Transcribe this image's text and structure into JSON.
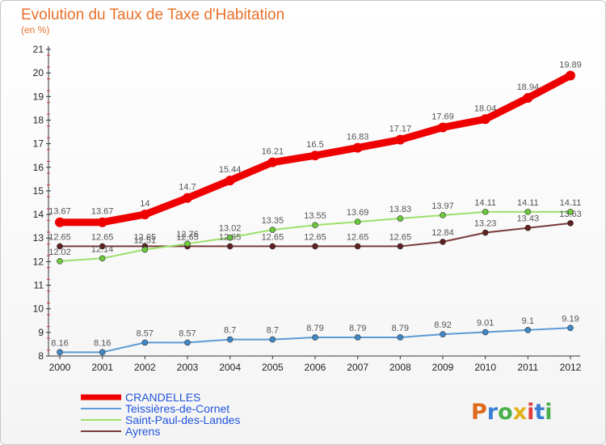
{
  "chart_data": {
    "type": "line",
    "title": "Evolution du Taux de Taxe d'Habitation",
    "subtitle": "(en %)",
    "xlabel": "",
    "ylabel": "",
    "x": [
      "2000",
      "2001",
      "2002",
      "2003",
      "2004",
      "2005",
      "2006",
      "2007",
      "2008",
      "2009",
      "2010",
      "2011",
      "2012"
    ],
    "ylim": [
      8,
      21
    ],
    "yticks": [
      8,
      9,
      10,
      11,
      12,
      13,
      14,
      15,
      16,
      17,
      18,
      19,
      20,
      21
    ],
    "grid": false,
    "legend_position": "bottom-left",
    "series": [
      {
        "name": "CRANDELLES",
        "color": "#ee0000",
        "values": [
          13.67,
          13.67,
          14,
          14.7,
          15.44,
          16.21,
          16.5,
          16.83,
          17.17,
          17.69,
          18.04,
          18.94,
          19.89
        ],
        "labels": [
          "13.67",
          "13.67",
          "14",
          "14.7",
          "15.44",
          "16.21",
          "16.5",
          "16.83",
          "17.17",
          "17.69",
          "18.04",
          "18.94",
          "19.89"
        ]
      },
      {
        "name": "Teissières-de-Cornet",
        "color": "#5b9bd5",
        "marker_color": "#3f88c8",
        "values": [
          8.16,
          8.16,
          8.57,
          8.57,
          8.7,
          8.7,
          8.79,
          8.79,
          8.79,
          8.92,
          9.01,
          9.1,
          9.19
        ],
        "labels": [
          "8.16",
          "8.16",
          "8.57",
          "8.57",
          "8.7",
          "8.7",
          "8.79",
          "8.79",
          "8.79",
          "8.92",
          "9.01",
          "9.1",
          "9.19"
        ]
      },
      {
        "name": "Saint-Paul-des-Landes",
        "color": "#9ce06b",
        "marker_color": "#6cc93c",
        "values": [
          12.02,
          12.14,
          12.51,
          12.76,
          13.02,
          13.35,
          13.55,
          13.69,
          13.83,
          13.97,
          14.11,
          14.11,
          14.11
        ],
        "labels": [
          "12.02",
          "12.14",
          "12.51",
          "12.76",
          "13.02",
          "13.35",
          "13.55",
          "13.69",
          "13.83",
          "13.97",
          "14.11",
          "14.11",
          "14.11"
        ]
      },
      {
        "name": "Ayrens",
        "color": "#7a3b3b",
        "marker_color": "#5e2020",
        "values": [
          12.65,
          12.65,
          12.65,
          12.65,
          12.65,
          12.65,
          12.65,
          12.65,
          12.65,
          12.84,
          13.23,
          13.43,
          13.63
        ],
        "labels": [
          "12.65",
          "12.65",
          "12.65",
          "12.65",
          "12.65",
          "12.65",
          "12.65",
          "12.65",
          "12.65",
          "12.84",
          "13.23",
          "13.43",
          "13.63"
        ]
      }
    ]
  },
  "logo": {
    "text": "Proxiti",
    "colors": [
      "#e06a1c",
      "#3a7fd5",
      "#49b049",
      "#e2b21a",
      "#e03d3d",
      "#3a7fd5",
      "#49b049"
    ]
  }
}
